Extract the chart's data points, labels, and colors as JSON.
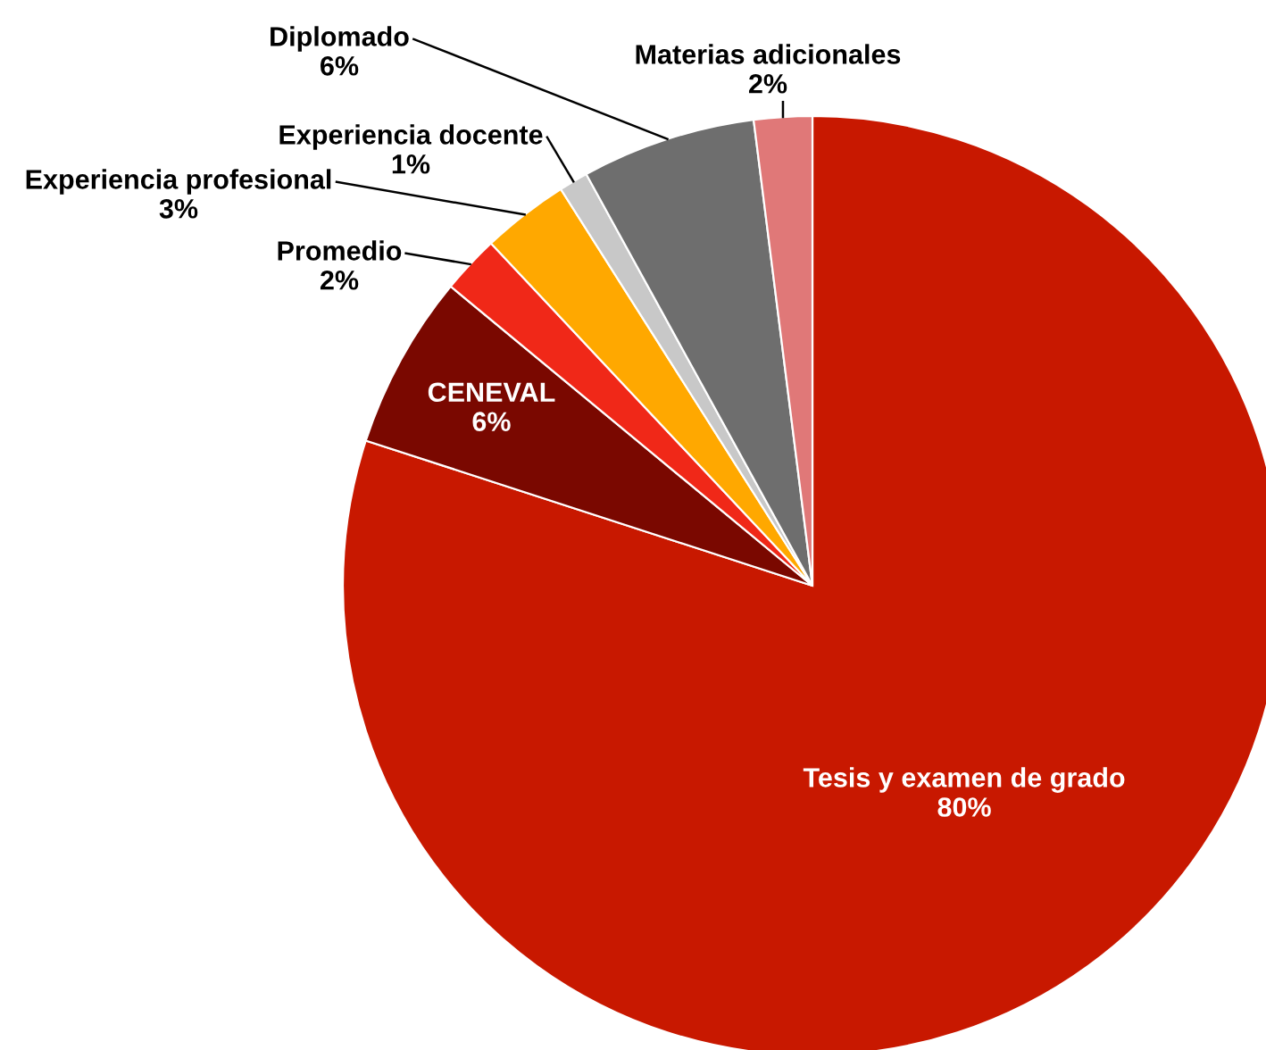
{
  "chart_data": {
    "type": "pie",
    "categories": [
      "Tesis y examen de grado",
      "CENEVAL",
      "Promedio",
      "Experiencia profesional",
      "Experiencia docente",
      "Diplomado",
      "Materias adicionales"
    ],
    "values": [
      80,
      6,
      2,
      3,
      1,
      6,
      2
    ],
    "colors": [
      "#c81800",
      "#7a0800",
      "#f02818",
      "#ffa800",
      "#c8c8c8",
      "#6e6e6e",
      "#e07878"
    ],
    "value_labels": [
      "80%",
      "6%",
      "2%",
      "3%",
      "1%",
      "6%",
      "2%"
    ],
    "legend": false
  }
}
